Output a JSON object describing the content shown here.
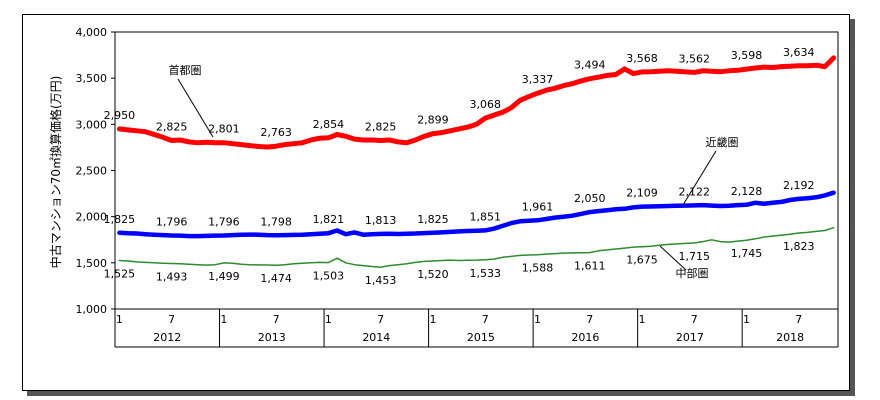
{
  "chart_data": {
    "type": "line",
    "ylabel": "中古マンション70㎡換算価格(万円)",
    "ylim": [
      1000,
      4000
    ],
    "yticks": [
      "1,000",
      "1,500",
      "2,000",
      "2,500",
      "3,000",
      "3,500",
      "4,000"
    ],
    "x_month_labels": [
      "1",
      "7",
      "1",
      "7",
      "1",
      "7",
      "1",
      "7",
      "1",
      "7",
      "1",
      "7",
      "1",
      "7"
    ],
    "years": [
      "2012",
      "2013",
      "2014",
      "2015",
      "2016",
      "2017",
      "2018"
    ],
    "x_month_indices": [
      0,
      6,
      12,
      18,
      24,
      30,
      36,
      42,
      48,
      54,
      60,
      66,
      72,
      78
    ],
    "series": [
      {
        "name": "首都圏",
        "color": "#ff0000",
        "values": [
          2950,
          2940,
          2930,
          2920,
          2890,
          2860,
          2825,
          2830,
          2810,
          2800,
          2805,
          2800,
          2801,
          2790,
          2780,
          2770,
          2760,
          2755,
          2763,
          2780,
          2790,
          2800,
          2830,
          2850,
          2854,
          2890,
          2870,
          2840,
          2830,
          2830,
          2825,
          2830,
          2810,
          2800,
          2830,
          2870,
          2899,
          2910,
          2930,
          2950,
          2970,
          3000,
          3068,
          3100,
          3130,
          3180,
          3260,
          3300,
          3337,
          3370,
          3390,
          3420,
          3440,
          3470,
          3494,
          3510,
          3530,
          3540,
          3600,
          3550,
          3568,
          3570,
          3575,
          3580,
          3575,
          3568,
          3562,
          3580,
          3575,
          3570,
          3580,
          3585,
          3598,
          3610,
          3620,
          3615,
          3625,
          3630,
          3634,
          3635,
          3640,
          3625,
          3720
        ],
        "labels": [
          [
            0,
            "2,950"
          ],
          [
            6,
            "2,825"
          ],
          [
            12,
            "2,801"
          ],
          [
            18,
            "2,763"
          ],
          [
            24,
            "2,854"
          ],
          [
            30,
            "2,825"
          ],
          [
            36,
            "2,899"
          ],
          [
            42,
            "3,068"
          ],
          [
            48,
            "3,337"
          ],
          [
            54,
            "3,494"
          ],
          [
            60,
            "3,568"
          ],
          [
            66,
            "3,562"
          ],
          [
            72,
            "3,598"
          ],
          [
            78,
            "3,634"
          ]
        ]
      },
      {
        "name": "近畿圏",
        "color": "#0000ff",
        "values": [
          1825,
          1820,
          1818,
          1810,
          1805,
          1800,
          1796,
          1795,
          1790,
          1790,
          1792,
          1795,
          1796,
          1800,
          1805,
          1806,
          1805,
          1800,
          1798,
          1800,
          1802,
          1805,
          1810,
          1815,
          1821,
          1850,
          1810,
          1830,
          1805,
          1810,
          1813,
          1815,
          1812,
          1815,
          1818,
          1822,
          1825,
          1830,
          1835,
          1840,
          1845,
          1848,
          1851,
          1870,
          1900,
          1930,
          1950,
          1955,
          1961,
          1975,
          1990,
          2000,
          2010,
          2030,
          2050,
          2060,
          2070,
          2080,
          2085,
          2100,
          2109,
          2110,
          2112,
          2115,
          2118,
          2120,
          2122,
          2125,
          2120,
          2115,
          2118,
          2125,
          2128,
          2150,
          2140,
          2150,
          2160,
          2180,
          2192,
          2200,
          2210,
          2230,
          2260
        ],
        "labels": [
          [
            0,
            "1,825"
          ],
          [
            6,
            "1,796"
          ],
          [
            12,
            "1,796"
          ],
          [
            18,
            "1,798"
          ],
          [
            24,
            "1,821"
          ],
          [
            30,
            "1,813"
          ],
          [
            36,
            "1,825"
          ],
          [
            42,
            "1,851"
          ],
          [
            48,
            "1,961"
          ],
          [
            54,
            "2,050"
          ],
          [
            60,
            "2,109"
          ],
          [
            66,
            "2,122"
          ],
          [
            72,
            "2,128"
          ],
          [
            78,
            "2,192"
          ]
        ]
      },
      {
        "name": "中部圏",
        "color": "#2e8b2e",
        "values": [
          1525,
          1520,
          1510,
          1505,
          1500,
          1495,
          1493,
          1490,
          1485,
          1480,
          1475,
          1480,
          1499,
          1495,
          1485,
          1480,
          1478,
          1476,
          1474,
          1480,
          1490,
          1495,
          1500,
          1505,
          1503,
          1550,
          1500,
          1480,
          1470,
          1460,
          1453,
          1470,
          1480,
          1490,
          1505,
          1515,
          1520,
          1525,
          1530,
          1525,
          1528,
          1530,
          1533,
          1540,
          1560,
          1570,
          1580,
          1585,
          1588,
          1595,
          1600,
          1605,
          1608,
          1610,
          1611,
          1630,
          1640,
          1650,
          1660,
          1670,
          1675,
          1680,
          1690,
          1700,
          1705,
          1710,
          1715,
          1730,
          1750,
          1730,
          1725,
          1735,
          1745,
          1760,
          1780,
          1790,
          1800,
          1810,
          1823,
          1830,
          1840,
          1850,
          1880
        ],
        "labels": [
          [
            0,
            "1,525"
          ],
          [
            6,
            "1,493"
          ],
          [
            12,
            "1,499"
          ],
          [
            18,
            "1,474"
          ],
          [
            24,
            "1,503"
          ],
          [
            30,
            "1,453"
          ],
          [
            36,
            "1,520"
          ],
          [
            42,
            "1,533"
          ],
          [
            48,
            "1,588"
          ],
          [
            54,
            "1,611"
          ],
          [
            60,
            "1,675"
          ],
          [
            66,
            "1,715"
          ],
          [
            72,
            "1,745"
          ],
          [
            78,
            "1,823"
          ]
        ]
      }
    ]
  }
}
